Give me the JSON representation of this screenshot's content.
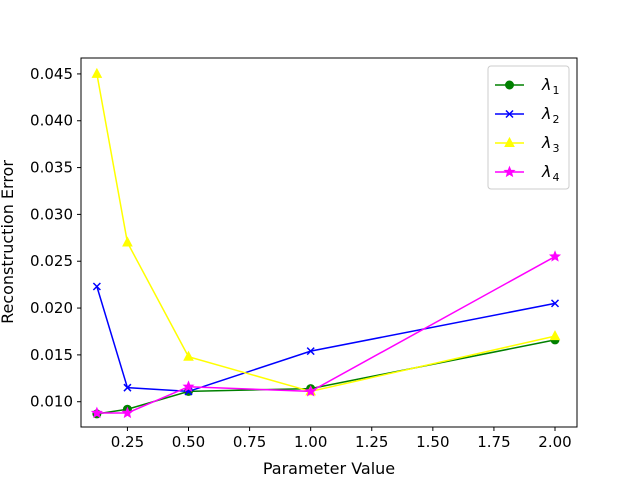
{
  "chart_data": {
    "type": "line",
    "xlabel": "Parameter Value",
    "ylabel": "Reconstruction Error",
    "xlim": [
      0.06,
      2.09
    ],
    "ylim": [
      0.0073,
      0.0467
    ],
    "xticks": [
      0.25,
      0.5,
      0.75,
      1.0,
      1.25,
      1.5,
      1.75,
      2.0
    ],
    "xtick_labels": [
      "0.25",
      "0.50",
      "0.75",
      "1.00",
      "1.25",
      "1.50",
      "1.75",
      "2.00"
    ],
    "yticks": [
      0.01,
      0.015,
      0.02,
      0.025,
      0.03,
      0.035,
      0.04,
      0.045
    ],
    "ytick_labels": [
      "0.010",
      "0.015",
      "0.020",
      "0.025",
      "0.030",
      "0.035",
      "0.040",
      "0.045"
    ],
    "grid": false,
    "legend_position": "top-right",
    "x": [
      0.125,
      0.25,
      0.5,
      1.0,
      2.0
    ],
    "series": [
      {
        "name": "λ",
        "sub": "1",
        "color": "#008000",
        "marker": "circle",
        "values": [
          0.0087,
          0.0092,
          0.0111,
          0.0114,
          0.0166
        ]
      },
      {
        "name": "λ",
        "sub": "2",
        "color": "#0000ff",
        "marker": "x",
        "values": [
          0.0223,
          0.0115,
          0.0111,
          0.0154,
          0.0205
        ]
      },
      {
        "name": "λ",
        "sub": "3",
        "color": "#ffff00",
        "marker": "triangle",
        "values": [
          0.045,
          0.027,
          0.0148,
          0.0111,
          0.017
        ]
      },
      {
        "name": "λ",
        "sub": "4",
        "color": "#ff00ff",
        "marker": "star",
        "values": [
          0.0088,
          0.0088,
          0.0116,
          0.0111,
          0.0255
        ]
      }
    ]
  }
}
